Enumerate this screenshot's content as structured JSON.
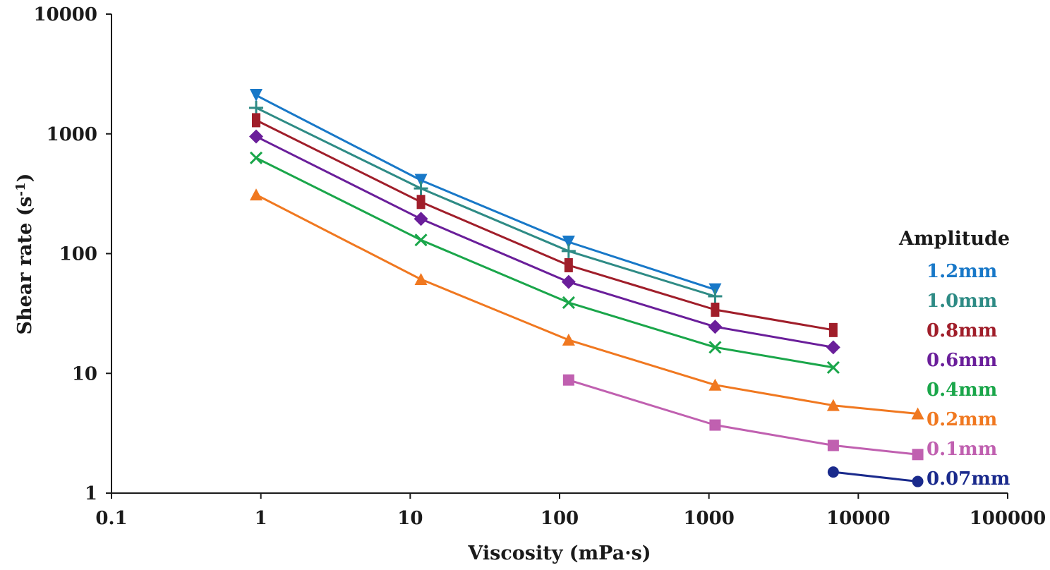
{
  "chart_data": {
    "type": "line",
    "title": "",
    "xlabel": "Viscosity (mPa·s)",
    "ylabel_main": "Shear rate (s",
    "ylabel_sup": "-1",
    "ylabel_close": ")",
    "x_scale": "log",
    "y_scale": "log",
    "xlim": [
      0.1,
      100000
    ],
    "ylim": [
      1,
      10000
    ],
    "x_ticks": [
      "0.1",
      "1",
      "10",
      "100",
      "1000",
      "10000",
      "100000"
    ],
    "y_ticks": [
      "1",
      "10",
      "100",
      "1000",
      "10000"
    ],
    "grid": false,
    "legend": {
      "title": "Amplitude",
      "placement": "right"
    },
    "series": [
      {
        "name": "1.2mm",
        "color": "#1878c8",
        "marker": "triangle-down",
        "x": [
          0.93,
          11.8,
          115,
          1100
        ],
        "y": [
          2100,
          410,
          125,
          50
        ]
      },
      {
        "name": "1.0mm",
        "color": "#2e8b85",
        "marker": "plus",
        "x": [
          0.93,
          11.8,
          115,
          1100
        ],
        "y": [
          1650,
          350,
          105,
          44
        ]
      },
      {
        "name": "0.8mm",
        "color": "#a01e2a",
        "marker": "square-tall",
        "x": [
          0.93,
          11.8,
          115,
          1100,
          6800
        ],
        "y": [
          1300,
          270,
          80,
          34,
          23
        ]
      },
      {
        "name": "0.6mm",
        "color": "#6a1e9a",
        "marker": "diamond",
        "x": [
          0.93,
          11.8,
          115,
          1100,
          6800
        ],
        "y": [
          950,
          195,
          58,
          24.5,
          16.5
        ]
      },
      {
        "name": "0.4mm",
        "color": "#1aa64a",
        "marker": "x",
        "x": [
          0.93,
          11.8,
          115,
          1100,
          6800
        ],
        "y": [
          630,
          130,
          39,
          16.5,
          11.2
        ]
      },
      {
        "name": "0.2mm",
        "color": "#f07820",
        "marker": "triangle-up",
        "x": [
          0.93,
          11.8,
          115,
          1100,
          6800,
          25000
        ],
        "y": [
          310,
          61,
          19,
          8,
          5.4,
          4.6
        ]
      },
      {
        "name": "0.1mm",
        "color": "#c060b0",
        "marker": "square",
        "x": [
          115,
          1100,
          6800,
          25000
        ],
        "y": [
          8.8,
          3.7,
          2.5,
          2.1
        ]
      },
      {
        "name": "0.07mm",
        "color": "#1a2a8c",
        "marker": "circle",
        "x": [
          6800,
          25000
        ],
        "y": [
          1.5,
          1.25
        ]
      }
    ]
  }
}
